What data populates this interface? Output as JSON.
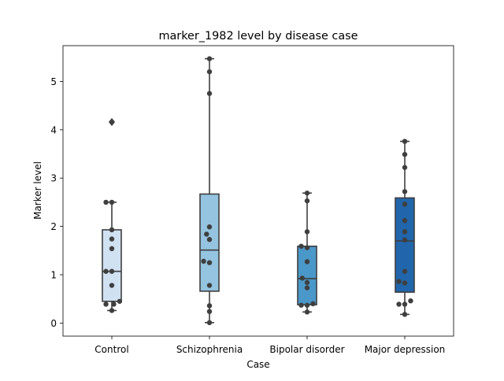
{
  "chart_data": {
    "type": "box",
    "title": "marker_1982 level by disease case",
    "xlabel": "Case",
    "ylabel": "Marker level",
    "ylim": [
      -0.27,
      5.74
    ],
    "yticks": [
      0,
      1,
      2,
      3,
      4,
      5
    ],
    "grid": false,
    "categories": [
      "Control",
      "Schizophrenia",
      "Bipolar disorder",
      "Major depression"
    ],
    "colors": [
      "#d0e1f2",
      "#94c4df",
      "#4a98c9",
      "#2166ac"
    ],
    "boxes": [
      {
        "q1": 0.45,
        "median": 1.07,
        "q3": 1.93,
        "whisker_low": 0.26,
        "whisker_high": 2.5,
        "fliers": [
          4.16
        ]
      },
      {
        "q1": 0.66,
        "median": 1.51,
        "q3": 2.67,
        "whisker_low": 0.01,
        "whisker_high": 5.47,
        "fliers": []
      },
      {
        "q1": 0.38,
        "median": 0.92,
        "q3": 1.59,
        "whisker_low": 0.23,
        "whisker_high": 2.69,
        "fliers": []
      },
      {
        "q1": 0.64,
        "median": 1.7,
        "q3": 2.59,
        "whisker_low": 0.18,
        "whisker_high": 3.76,
        "fliers": []
      }
    ],
    "points": [
      [
        {
          "x": -0.06,
          "y": 2.5
        },
        {
          "x": 0.0,
          "y": 2.5
        },
        {
          "x": 0.0,
          "y": 1.93
        },
        {
          "x": 0.0,
          "y": 1.74
        },
        {
          "x": 0.0,
          "y": 1.54
        },
        {
          "x": -0.06,
          "y": 1.07
        },
        {
          "x": 0.0,
          "y": 1.07
        },
        {
          "x": 0.0,
          "y": 0.78
        },
        {
          "x": 0.08,
          "y": 0.45
        },
        {
          "x": -0.06,
          "y": 0.39
        },
        {
          "x": 0.02,
          "y": 0.39
        },
        {
          "x": 0.0,
          "y": 0.26
        },
        {
          "x": 0.0,
          "y": 4.16
        }
      ],
      [
        {
          "x": 0.0,
          "y": 5.47
        },
        {
          "x": 0.0,
          "y": 5.2
        },
        {
          "x": 0.0,
          "y": 4.75
        },
        {
          "x": 0.0,
          "y": 1.99
        },
        {
          "x": -0.03,
          "y": 1.84
        },
        {
          "x": 0.0,
          "y": 1.73
        },
        {
          "x": -0.06,
          "y": 1.28
        },
        {
          "x": 0.0,
          "y": 1.25
        },
        {
          "x": 0.0,
          "y": 0.78
        },
        {
          "x": 0.0,
          "y": 0.36
        },
        {
          "x": 0.0,
          "y": 0.24
        },
        {
          "x": 0.0,
          "y": 0.01
        }
      ],
      [
        {
          "x": 0.0,
          "y": 2.69
        },
        {
          "x": 0.0,
          "y": 2.53
        },
        {
          "x": 0.0,
          "y": 1.89
        },
        {
          "x": -0.06,
          "y": 1.59
        },
        {
          "x": 0.0,
          "y": 1.56
        },
        {
          "x": 0.0,
          "y": 1.27
        },
        {
          "x": -0.05,
          "y": 0.93
        },
        {
          "x": 0.0,
          "y": 0.84
        },
        {
          "x": 0.0,
          "y": 0.73
        },
        {
          "x": 0.06,
          "y": 0.4
        },
        {
          "x": -0.06,
          "y": 0.37
        },
        {
          "x": 0.0,
          "y": 0.37
        },
        {
          "x": 0.0,
          "y": 0.23
        }
      ],
      [
        {
          "x": 0.0,
          "y": 3.76
        },
        {
          "x": 0.0,
          "y": 3.49
        },
        {
          "x": 0.0,
          "y": 3.22
        },
        {
          "x": 0.0,
          "y": 2.72
        },
        {
          "x": 0.0,
          "y": 2.46
        },
        {
          "x": 0.0,
          "y": 2.12
        },
        {
          "x": 0.0,
          "y": 1.89
        },
        {
          "x": 0.0,
          "y": 1.72
        },
        {
          "x": 0.0,
          "y": 1.07
        },
        {
          "x": -0.06,
          "y": 0.86
        },
        {
          "x": 0.0,
          "y": 0.83
        },
        {
          "x": 0.06,
          "y": 0.46
        },
        {
          "x": -0.06,
          "y": 0.39
        },
        {
          "x": 0.0,
          "y": 0.39
        },
        {
          "x": 0.0,
          "y": 0.18
        }
      ]
    ]
  }
}
